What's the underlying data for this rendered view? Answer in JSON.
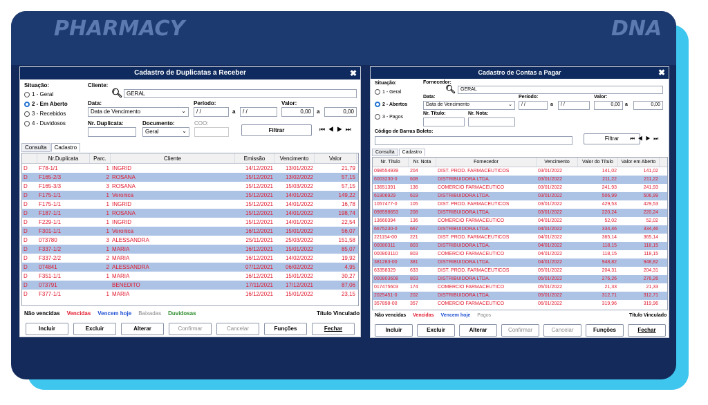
{
  "colors": {
    "accent": "#3fc6ee",
    "frame": "#132a5b",
    "titlebar": "#0e2a5e",
    "row_alt": "#adc3e6",
    "row_text": "#e0192d"
  },
  "banner": {
    "left_brand": "PHARMACY",
    "right_brand": "DNA"
  },
  "left": {
    "title": "Cadastro de Duplicatas a Receber",
    "close": "✖",
    "situacao_label": "Situação:",
    "radios": [
      "1 - Geral",
      "2 - Em Aberto",
      "3 - Recebidos",
      "4 - Duvidosos"
    ],
    "cliente_label": "Cliente:",
    "cliente_value": "GERAL",
    "data_label": "Data:",
    "data_value": "Data de Vencimento",
    "periodo_label": "Período:",
    "periodo_from": "/ /",
    "periodo_a": "a",
    "periodo_to": "/ /",
    "valor_label": "Valor:",
    "valor_from": "0,00",
    "valor_a": "a",
    "valor_to": "0,00",
    "nr_dup_label": "Nr. Duplicata:",
    "documento_label": "Documento:",
    "documento_value": "Geral",
    "coo_label": "COO:",
    "filtrar": "Filtrar",
    "nav": "⏮ ◀ ▶ ⏭",
    "tabs": [
      "Consulta",
      "Cadastro"
    ],
    "columns": [
      "",
      "Nr.Duplicata",
      "Parc.",
      "Cliente",
      "Emissão",
      "Vencimento",
      "Valor"
    ],
    "rows": [
      [
        "D",
        "F78-1/1",
        "1",
        "INGRID",
        "14/12/2021",
        "13/01/2022",
        "21,79"
      ],
      [
        "D",
        "F165-2/3",
        "2",
        "ROSANA",
        "15/12/2021",
        "13/02/2022",
        "57,15"
      ],
      [
        "D",
        "F165-3/3",
        "3",
        "ROSANA",
        "15/12/2021",
        "15/03/2022",
        "57,15"
      ],
      [
        "D",
        "F175-1/1",
        "1",
        "Veronica",
        "15/12/2021",
        "14/01/2022",
        "149,22"
      ],
      [
        "D",
        "F175-1/1",
        "1",
        "INGRID",
        "15/12/2021",
        "14/01/2022",
        "16,78"
      ],
      [
        "D",
        "F187-1/1",
        "1",
        "ROSANA",
        "15/12/2021",
        "14/01/2022",
        "198,74"
      ],
      [
        "D",
        "F229-1/1",
        "1",
        "INGRID",
        "15/12/2021",
        "14/01/2022",
        "22,54"
      ],
      [
        "D",
        "F301-1/1",
        "1",
        "Veronica",
        "16/12/2021",
        "15/01/2022",
        "56,07"
      ],
      [
        "D",
        "073780",
        "3",
        "ALESSANDRA",
        "25/11/2021",
        "25/03/2022",
        "151,58"
      ],
      [
        "D",
        "F337-1/2",
        "1",
        "MARIA",
        "16/12/2021",
        "15/01/2022",
        "85,07"
      ],
      [
        "D",
        "F337-2/2",
        "2",
        "MARIA",
        "16/12/2021",
        "14/02/2022",
        "19,92"
      ],
      [
        "D",
        "074841",
        "2",
        "ALESSANDRA",
        "07/12/2021",
        "06/02/2022",
        "4,95"
      ],
      [
        "D",
        "F351-1/1",
        "1",
        "MARIA",
        "16/12/2021",
        "15/01/2022",
        "30,27"
      ],
      [
        "D",
        "073791",
        "",
        "BENEDITO",
        "17/11/2021",
        "17/12/2021",
        "87,06"
      ],
      [
        "D",
        "F377-1/1",
        "1",
        "MARIA",
        "16/12/2021",
        "15/01/2022",
        "23,15"
      ]
    ],
    "legend": [
      "Não vencidas",
      "Vencidas",
      "Vencem hoje",
      "Baixadas",
      "Duvidosas"
    ],
    "legend_right": "Título Vinculado",
    "buttons": [
      "Incluir",
      "Excluir",
      "Alterar",
      "Confirmar",
      "Cancelar",
      "Funções",
      "Fechar"
    ]
  },
  "right": {
    "title": "Cadastro de Contas a Pagar",
    "close": "✖",
    "situacao_label": "Situação:",
    "radios": [
      "1 - Geral",
      "2 - Abertos",
      "3 - Pagos"
    ],
    "fornecedor_label": "Fornecedor:",
    "fornecedor_value": "GERAL",
    "data_label": "Data:",
    "data_value": "Data de Vencimento",
    "periodo_label": "Período:",
    "periodo_from": "/ /",
    "periodo_a": "a",
    "periodo_to": "/ /",
    "valor_label": "Valor:",
    "valor_from": "0,00",
    "valor_a": "a",
    "valor_to": "0,00",
    "nr_titulo_label": "Nr. Título:",
    "nr_nota_label": "Nr. Nota:",
    "barcode_label": "Código de Barras Boleto:",
    "filtrar": "Filtrar",
    "nav": "⏮ ◀ ▶ ⏭",
    "tabs": [
      "Consulta",
      "Cadastro"
    ],
    "columns": [
      "Nr. Título",
      "Nr. Nota",
      "Fornecedor",
      "Vencimento",
      "Valor do Título",
      "Valor em Aberto"
    ],
    "rows": [
      [
        "098554939",
        "204",
        "DIST. PROD. FARMACEUTICOS",
        "03/01/2022",
        "141,02",
        "141,02"
      ],
      [
        "6003230-0",
        "608",
        "DISTRIBUIDORA LTDA.",
        "03/01/2022",
        "211,22",
        "211,22"
      ],
      [
        "13651391",
        "136",
        "COMERCIO FARMACEUTICO",
        "03/01/2022",
        "241,93",
        "241,93"
      ],
      [
        "61906929",
        "619",
        "DISTRIBUIDORA LTDA.",
        "03/01/2022",
        "506,99",
        "506,99"
      ],
      [
        "1057477-0",
        "105",
        "DIST. PROD. FARMACEUTICOS",
        "03/01/2022",
        "429,53",
        "429,53"
      ],
      [
        "098598653",
        "208",
        "DISTRIBUIDORA LTDA.",
        "03/01/2022",
        "220,24",
        "220,24"
      ],
      [
        "13660394",
        "136",
        "COMERCIO FARMACEUTICO",
        "04/01/2022",
        "52,02",
        "52,02"
      ],
      [
        "6675230-0",
        "667",
        "DISTRIBUIDORA LTDA.",
        "04/01/2022",
        "334,46",
        "334,46"
      ],
      [
        "221154-00",
        "221",
        "DIST. PROD. FARMACEUTICOS",
        "04/01/2022",
        "365,14",
        "365,14"
      ],
      [
        "00080311",
        "803",
        "DISTRIBUIDORA LTDA.",
        "04/01/2022",
        "118,15",
        "118,15"
      ],
      [
        "000803110",
        "803",
        "COMERCIO FARMACEUTICO",
        "04/01/2022",
        "118,15",
        "118,15"
      ],
      [
        "381283-00",
        "381",
        "DISTRIBUIDORA LTDA.",
        "04/01/2022",
        "948,82",
        "948,82"
      ],
      [
        "63358329",
        "633",
        "DIST. PROD. FARMACEUTICOS",
        "05/01/2022",
        "204,31",
        "204,31"
      ],
      [
        "000803608",
        "803",
        "DISTRIBUIDORA LTDA.",
        "05/01/2022",
        "276,26",
        "276,26"
      ],
      [
        "017475603",
        "174",
        "COMERCIO FARMACEUTICO",
        "05/01/2022",
        "21,33",
        "21,33"
      ],
      [
        "2025451-0",
        "202",
        "DISTRIBUIDORA LTDA.",
        "05/01/2022",
        "312,71",
        "312,71"
      ],
      [
        "357898-00",
        "357",
        "COMERCIO FARMACEUTICO",
        "06/01/2022",
        "319,96",
        "319,96"
      ]
    ],
    "legend": [
      "Não vencidas",
      "Vencidas",
      "Vencem hoje",
      "Pagos"
    ],
    "legend_right": "Título Vinculado",
    "buttons": [
      "Incluir",
      "Excluir",
      "Alterar",
      "Confirmar",
      "Cancelar",
      "Funções",
      "Fechar"
    ]
  }
}
